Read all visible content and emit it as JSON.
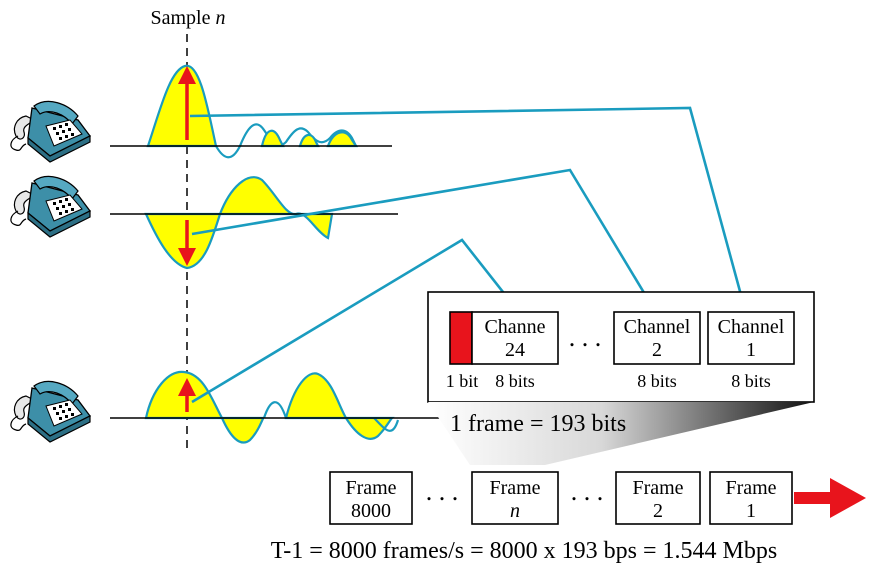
{
  "sample_label": {
    "text": "Sample ",
    "var": "n"
  },
  "channels": [
    {
      "line1": "Channe",
      "line2": "24",
      "bits": "8 bits"
    },
    {
      "line1": "Channel",
      "line2": "2",
      "bits": "8 bits"
    },
    {
      "line1": "Channel",
      "line2": "1",
      "bits": "8 bits"
    }
  ],
  "framing_bit_label": "1 bit",
  "ellipsis": ". . .",
  "frame_size": "1 frame = 193 bits",
  "frames": [
    {
      "line1": "Frame",
      "line2": "8000"
    },
    {
      "line1": "Frame",
      "line2": "n"
    },
    {
      "line1": "Frame",
      "line2": "2"
    },
    {
      "line1": "Frame",
      "line2": "1"
    }
  ],
  "formula": "T-1 = 8000 frames/s = 8000 x 193 bps = 1.544 Mbps",
  "icons": [
    "telephone-icon",
    "telephone-icon",
    "telephone-icon",
    "arrow-right-icon"
  ],
  "colors": {
    "wire": "#1a9cbf",
    "signal_fill": "#ffff00",
    "sample_arrow": "#e8141c",
    "framing_bit": "#e8141c"
  }
}
